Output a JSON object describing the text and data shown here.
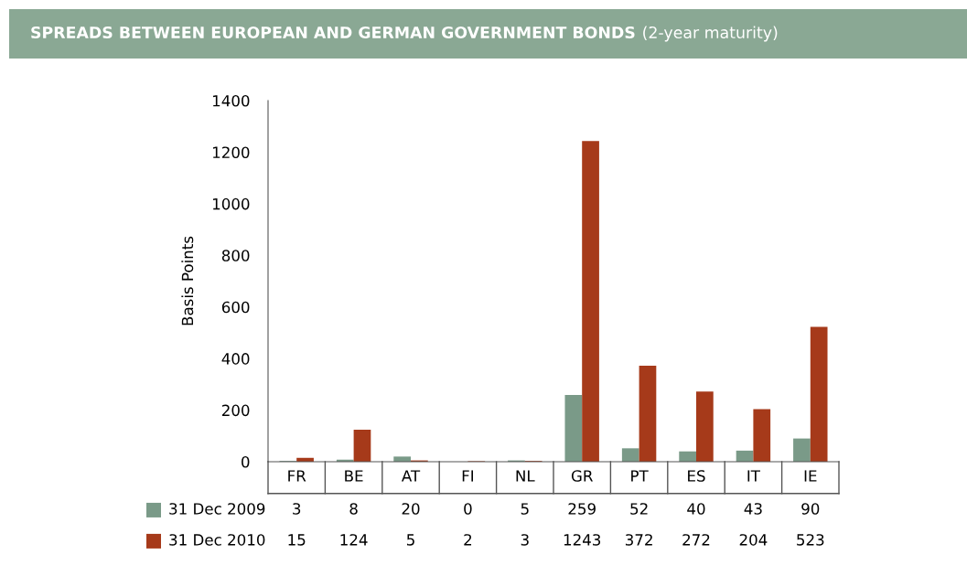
{
  "chart_data": {
    "type": "bar",
    "title": "SPREADS BETWEEN EUROPEAN AND GERMAN GOVERNMENT BONDS",
    "subtitle": "(2-year maturity)",
    "ylabel": "Basis Points",
    "categories": [
      "FR",
      "BE",
      "AT",
      "FI",
      "NL",
      "GR",
      "PT",
      "ES",
      "IT",
      "IE"
    ],
    "series": [
      {
        "name": "31 Dec 2009",
        "color": "#7a9a88",
        "values": [
          3,
          8,
          20,
          0,
          5,
          259,
          52,
          40,
          43,
          90
        ]
      },
      {
        "name": "31 Dec 2010",
        "color": "#a63a1a",
        "values": [
          15,
          124,
          5,
          2,
          3,
          1243,
          372,
          272,
          204,
          523
        ]
      }
    ],
    "ylim": [
      0,
      1400
    ],
    "yticks": [
      0,
      200,
      400,
      600,
      800,
      1000,
      1200,
      1400
    ],
    "grid": false,
    "legend": "bottom",
    "data_labels": true
  }
}
